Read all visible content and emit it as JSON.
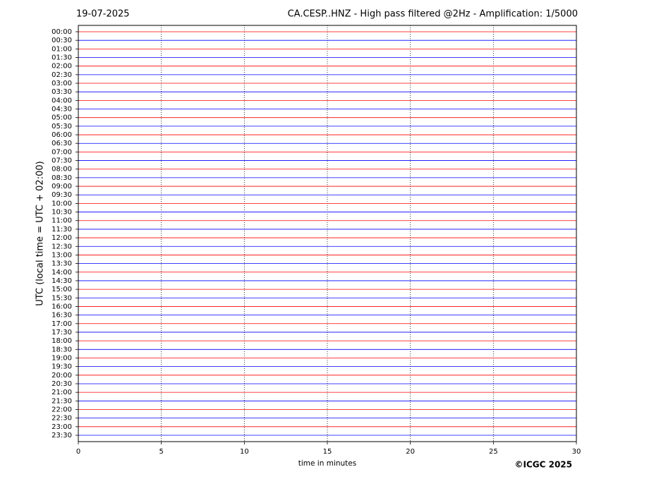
{
  "chart_data": {
    "type": "helicorder",
    "date": "19-07-2025",
    "title": "CA.CESP..HNZ - High pass filtered @2Hz - Amplification: 1/5000",
    "y_label": "UTC (local time = UTC + 02:00)",
    "x_label": "time in minutes",
    "categories": [
      "00:00",
      "00:30",
      "01:00",
      "01:30",
      "02:00",
      "02:30",
      "03:00",
      "03:30",
      "04:00",
      "04:30",
      "05:00",
      "05:30",
      "06:00",
      "06:30",
      "07:00",
      "07:30",
      "08:00",
      "08:30",
      "09:00",
      "09:30",
      "10:00",
      "10:30",
      "11:00",
      "11:30",
      "12:00",
      "12:30",
      "13:00",
      "13:30",
      "14:00",
      "14:30",
      "15:00",
      "15:30",
      "16:00",
      "16:30",
      "17:00",
      "17:30",
      "18:00",
      "18:30",
      "19:00",
      "19:30",
      "20:00",
      "20:30",
      "21:00",
      "21:30",
      "22:00",
      "22:30",
      "23:00",
      "23:30"
    ],
    "colors": [
      "#ff0000",
      "#0000ff"
    ],
    "xlim": [
      0,
      30
    ],
    "xticks": [
      0,
      5,
      10,
      15,
      20,
      25,
      30
    ],
    "grid": true
  },
  "credit": "©ICGC 2025"
}
